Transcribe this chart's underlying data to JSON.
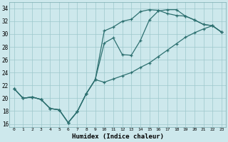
{
  "xlabel": "Humidex (Indice chaleur)",
  "bg_color": "#cde8ec",
  "grid_color": "#9dc8cc",
  "line_color": "#2d7070",
  "xlim": [
    -0.5,
    23.5
  ],
  "ylim": [
    15.5,
    35.0
  ],
  "xticks": [
    0,
    1,
    2,
    3,
    4,
    5,
    6,
    7,
    8,
    9,
    10,
    11,
    12,
    13,
    14,
    15,
    16,
    17,
    18,
    19,
    20,
    21,
    22,
    23
  ],
  "yticks": [
    16,
    18,
    20,
    22,
    24,
    26,
    28,
    30,
    32,
    34
  ],
  "line1_y": [
    21.5,
    20.0,
    20.2,
    19.8,
    18.4,
    18.2,
    16.2,
    17.9,
    20.7,
    22.9,
    28.6,
    29.4,
    26.8,
    26.7,
    29.0,
    32.2,
    33.6,
    33.8,
    33.8,
    32.8,
    32.2,
    31.5,
    31.3,
    30.3
  ],
  "line2_y": [
    21.5,
    20.0,
    20.2,
    19.8,
    18.4,
    18.2,
    16.2,
    17.9,
    20.7,
    22.9,
    30.5,
    31.1,
    32.0,
    32.3,
    33.5,
    33.8,
    33.7,
    33.2,
    32.9,
    32.8,
    32.2,
    31.5,
    31.3,
    30.3
  ],
  "line3_y": [
    21.5,
    20.0,
    20.2,
    19.8,
    18.4,
    18.2,
    16.2,
    17.9,
    20.7,
    22.9,
    22.5,
    23.0,
    23.5,
    24.0,
    24.8,
    25.5,
    26.5,
    27.5,
    28.5,
    29.5,
    30.2,
    30.8,
    31.3,
    30.3
  ]
}
